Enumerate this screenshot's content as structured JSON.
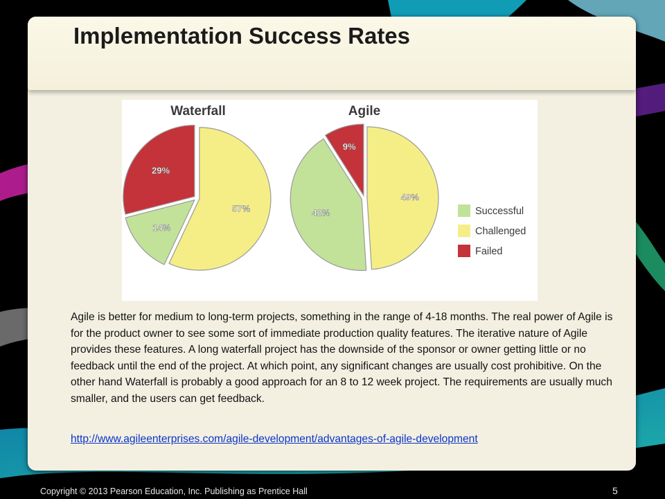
{
  "slide": {
    "title": "Implementation Success Rates",
    "body": "Agile is better for medium to long-term projects, something in the range of 4-18 months. The real power of Agile is for the product owner to see some sort of immediate production quality features. The iterative nature of Agile provides these features. A long waterfall project has the downside of the sponsor or owner getting little or no feedback until the end of the project. At which point, any significant changes are usually cost prohibitive. On the other hand Waterfall is probably a good approach for an 8 to 12 week project. The requirements are usually much smaller, and the users can get feedback.",
    "link": "http://www.agileenterprises.com/agile-development/advantages-of-agile-development",
    "copyright": "Copyright © 2013 Pearson Education, Inc. Publishing as Prentice Hall",
    "page_number": "5"
  },
  "colors": {
    "successful": "#c2e29a",
    "challenged": "#f5ee86",
    "failed": "#c4333a",
    "title_bar": "#fbf8e8",
    "panel": "#f3f0e2",
    "link": "#0a33c8"
  },
  "chart_data": [
    {
      "type": "pie",
      "title": "Waterfall",
      "categories": [
        "Successful",
        "Challenged",
        "Failed"
      ],
      "values": [
        14,
        57,
        29
      ],
      "labels": [
        "14%",
        "57%",
        "29%"
      ]
    },
    {
      "type": "pie",
      "title": "Agile",
      "categories": [
        "Successful",
        "Challenged",
        "Failed"
      ],
      "values": [
        42,
        49,
        9
      ],
      "labels": [
        "42%",
        "49%",
        "9%"
      ]
    }
  ],
  "legend": {
    "placement": "right",
    "items": [
      "Successful",
      "Challenged",
      "Failed"
    ]
  }
}
